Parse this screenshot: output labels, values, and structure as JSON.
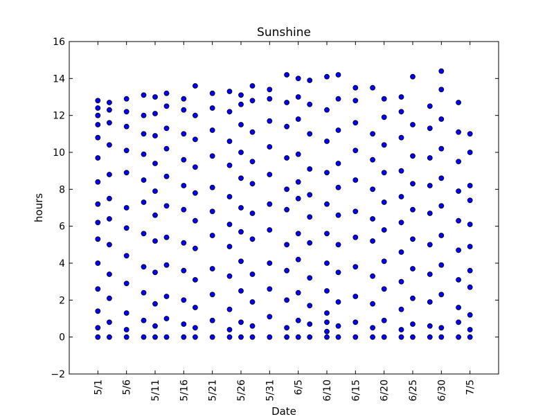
{
  "chart_data": {
    "type": "scatter",
    "title": "Sunshine",
    "xlabel": "Date",
    "ylabel": "hours",
    "xlim": [
      "2015-04-26",
      "2015-07-10"
    ],
    "ylim": [
      -2,
      16
    ],
    "x_ticks": [
      "5/1",
      "5/6",
      "5/11",
      "5/16",
      "5/21",
      "5/26",
      "5/31",
      "6/5",
      "6/10",
      "6/15",
      "6/20",
      "6/25",
      "6/30",
      "7/5"
    ],
    "y_ticks": [
      "−2",
      "0",
      "2",
      "4",
      "6",
      "8",
      "10",
      "12",
      "14",
      "16"
    ],
    "grid": false,
    "legend": "none",
    "marker": "circle",
    "marker_color": "#0000ff",
    "marker_edge_color": "#000000",
    "series": [
      {
        "x": [
          "2015-05-01",
          "2015-05-01",
          "2015-05-01",
          "2015-05-01",
          "2015-05-01",
          "2015-05-01",
          "2015-05-01",
          "2015-05-01",
          "2015-05-01",
          "2015-05-01",
          "2015-05-01",
          "2015-05-01",
          "2015-05-01",
          "2015-05-01",
          "2015-05-01",
          "2015-05-03",
          "2015-05-03",
          "2015-05-03",
          "2015-05-03",
          "2015-05-03",
          "2015-05-03",
          "2015-05-03",
          "2015-05-03",
          "2015-05-03",
          "2015-05-03",
          "2015-05-03",
          "2015-05-03",
          "2015-05-06",
          "2015-05-06",
          "2015-05-06",
          "2015-05-06",
          "2015-05-06",
          "2015-05-06",
          "2015-05-06",
          "2015-05-06",
          "2015-05-06",
          "2015-05-06",
          "2015-05-06",
          "2015-05-06",
          "2015-05-09",
          "2015-05-09",
          "2015-05-09",
          "2015-05-09",
          "2015-05-09",
          "2015-05-09",
          "2015-05-09",
          "2015-05-09",
          "2015-05-09",
          "2015-05-09",
          "2015-05-09",
          "2015-05-11",
          "2015-05-11",
          "2015-05-11",
          "2015-05-11",
          "2015-05-11",
          "2015-05-11",
          "2015-05-11",
          "2015-05-11",
          "2015-05-11",
          "2015-05-11",
          "2015-05-11",
          "2015-05-13",
          "2015-05-13",
          "2015-05-13",
          "2015-05-13",
          "2015-05-13",
          "2015-05-13",
          "2015-05-13",
          "2015-05-13",
          "2015-05-13",
          "2015-05-13",
          "2015-05-13",
          "2015-05-16",
          "2015-05-16",
          "2015-05-16",
          "2015-05-16",
          "2015-05-16",
          "2015-05-16",
          "2015-05-16",
          "2015-05-16",
          "2015-05-16",
          "2015-05-16",
          "2015-05-16",
          "2015-05-18",
          "2015-05-18",
          "2015-05-18",
          "2015-05-18",
          "2015-05-18",
          "2015-05-18",
          "2015-05-18",
          "2015-05-18",
          "2015-05-18",
          "2015-05-18",
          "2015-05-18",
          "2015-05-21",
          "2015-05-21",
          "2015-05-21",
          "2015-05-21",
          "2015-05-21",
          "2015-05-21",
          "2015-05-21",
          "2015-05-21",
          "2015-05-21",
          "2015-05-21",
          "2015-05-21",
          "2015-05-24",
          "2015-05-24",
          "2015-05-24",
          "2015-05-24",
          "2015-05-24",
          "2015-05-24",
          "2015-05-24",
          "2015-05-24",
          "2015-05-24",
          "2015-05-24",
          "2015-05-24",
          "2015-05-26",
          "2015-05-26",
          "2015-05-26",
          "2015-05-26",
          "2015-05-26",
          "2015-05-26",
          "2015-05-26",
          "2015-05-26",
          "2015-05-26",
          "2015-05-26",
          "2015-05-26",
          "2015-05-28",
          "2015-05-28",
          "2015-05-28",
          "2015-05-28",
          "2015-05-28",
          "2015-05-28",
          "2015-05-28",
          "2015-05-28",
          "2015-05-28",
          "2015-05-28",
          "2015-05-28",
          "2015-05-31",
          "2015-05-31",
          "2015-05-31",
          "2015-05-31",
          "2015-05-31",
          "2015-05-31",
          "2015-05-31",
          "2015-05-31",
          "2015-05-31",
          "2015-05-31",
          "2015-05-31",
          "2015-06-03",
          "2015-06-03",
          "2015-06-03",
          "2015-06-03",
          "2015-06-03",
          "2015-06-03",
          "2015-06-03",
          "2015-06-03",
          "2015-06-03",
          "2015-06-03",
          "2015-06-03",
          "2015-06-05",
          "2015-06-05",
          "2015-06-05",
          "2015-06-05",
          "2015-06-05",
          "2015-06-05",
          "2015-06-05",
          "2015-06-05",
          "2015-06-05",
          "2015-06-05",
          "2015-06-05",
          "2015-06-07",
          "2015-06-07",
          "2015-06-07",
          "2015-06-07",
          "2015-06-07",
          "2015-06-07",
          "2015-06-07",
          "2015-06-07",
          "2015-06-07",
          "2015-06-07",
          "2015-06-07",
          "2015-06-10",
          "2015-06-10",
          "2015-06-10",
          "2015-06-10",
          "2015-06-10",
          "2015-06-10",
          "2015-06-10",
          "2015-06-10",
          "2015-06-10",
          "2015-06-10",
          "2015-06-10",
          "2015-06-10",
          "2015-06-12",
          "2015-06-12",
          "2015-06-12",
          "2015-06-12",
          "2015-06-12",
          "2015-06-12",
          "2015-06-12",
          "2015-06-12",
          "2015-06-12",
          "2015-06-12",
          "2015-06-12",
          "2015-06-15",
          "2015-06-15",
          "2015-06-15",
          "2015-06-15",
          "2015-06-15",
          "2015-06-15",
          "2015-06-15",
          "2015-06-15",
          "2015-06-15",
          "2015-06-15",
          "2015-06-15",
          "2015-06-18",
          "2015-06-18",
          "2015-06-18",
          "2015-06-18",
          "2015-06-18",
          "2015-06-18",
          "2015-06-18",
          "2015-06-18",
          "2015-06-18",
          "2015-06-18",
          "2015-06-20",
          "2015-06-20",
          "2015-06-20",
          "2015-06-20",
          "2015-06-20",
          "2015-06-20",
          "2015-06-20",
          "2015-06-20",
          "2015-06-20",
          "2015-06-20",
          "2015-06-23",
          "2015-06-23",
          "2015-06-23",
          "2015-06-23",
          "2015-06-23",
          "2015-06-23",
          "2015-06-23",
          "2015-06-23",
          "2015-06-23",
          "2015-06-23",
          "2015-06-23",
          "2015-06-25",
          "2015-06-25",
          "2015-06-25",
          "2015-06-25",
          "2015-06-25",
          "2015-06-25",
          "2015-06-25",
          "2015-06-25",
          "2015-06-25",
          "2015-06-25",
          "2015-06-28",
          "2015-06-28",
          "2015-06-28",
          "2015-06-28",
          "2015-06-28",
          "2015-06-28",
          "2015-06-28",
          "2015-06-28",
          "2015-06-28",
          "2015-06-28",
          "2015-06-30",
          "2015-06-30",
          "2015-06-30",
          "2015-06-30",
          "2015-06-30",
          "2015-06-30",
          "2015-06-30",
          "2015-06-30",
          "2015-06-30",
          "2015-06-30",
          "2015-06-30",
          "2015-07-03",
          "2015-07-03",
          "2015-07-03",
          "2015-07-03",
          "2015-07-03",
          "2015-07-03",
          "2015-07-03",
          "2015-07-03",
          "2015-07-03",
          "2015-07-03",
          "2015-07-05",
          "2015-07-05",
          "2015-07-05",
          "2015-07-05",
          "2015-07-05",
          "2015-07-05",
          "2015-07-05",
          "2015-07-05",
          "2015-07-05",
          "2015-07-05",
          "2015-07-05"
        ],
        "y": [
          0,
          0.5,
          1.4,
          2.6,
          4.0,
          5.3,
          6.2,
          7.2,
          8.4,
          9.7,
          10.8,
          11.5,
          12.0,
          12.4,
          12.8,
          0,
          0.8,
          2.1,
          3.4,
          5.0,
          6.4,
          7.5,
          8.8,
          10.4,
          11.6,
          12.3,
          12.7,
          0,
          0.4,
          1.3,
          2.9,
          4.4,
          5.9,
          7.0,
          8.9,
          10.1,
          11.4,
          12.2,
          12.9,
          0,
          0.9,
          2.4,
          3.8,
          5.6,
          7.3,
          8.5,
          9.9,
          11.0,
          12.0,
          13.1,
          0,
          0.6,
          1.8,
          3.5,
          5.2,
          6.6,
          7.9,
          9.4,
          10.9,
          12.1,
          13.0,
          0,
          1.0,
          2.2,
          3.9,
          5.4,
          7.1,
          8.7,
          10.2,
          11.3,
          12.5,
          13.2,
          0,
          0.7,
          2.0,
          3.6,
          5.1,
          6.9,
          8.2,
          9.6,
          11.0,
          12.3,
          12.9,
          0,
          0.5,
          1.6,
          3.1,
          4.8,
          6.3,
          7.8,
          9.2,
          10.7,
          12.0,
          13.6,
          0,
          0.9,
          2.3,
          3.7,
          5.5,
          6.8,
          8.1,
          9.8,
          11.2,
          12.4,
          13.2,
          0,
          0.4,
          1.5,
          3.3,
          4.9,
          6.1,
          7.6,
          9.3,
          10.6,
          12.2,
          13.3,
          0,
          0.8,
          2.5,
          4.1,
          5.7,
          7.0,
          8.6,
          10.0,
          11.5,
          12.6,
          13.1,
          0,
          0.6,
          1.9,
          3.4,
          5.3,
          6.7,
          8.3,
          9.5,
          11.1,
          12.8,
          13.6,
          0,
          1.1,
          2.6,
          4.0,
          5.8,
          7.2,
          8.8,
          10.3,
          11.7,
          12.9,
          13.4,
          0,
          0.5,
          2.0,
          3.6,
          5.0,
          6.9,
          8.0,
          9.7,
          11.4,
          12.7,
          14.2,
          0,
          0.9,
          2.4,
          4.2,
          5.6,
          7.5,
          8.4,
          9.9,
          11.8,
          13.0,
          14.0,
          0,
          0.7,
          1.7,
          3.2,
          5.1,
          6.5,
          7.7,
          9.1,
          11.0,
          12.6,
          13.9,
          0,
          0.3,
          0.8,
          1.3,
          2.5,
          4.0,
          5.6,
          7.2,
          8.9,
          10.6,
          12.3,
          14.1,
          0,
          0.6,
          1.9,
          3.5,
          5.0,
          6.6,
          8.1,
          9.4,
          11.2,
          12.9,
          14.2,
          0,
          0.8,
          2.2,
          3.8,
          5.4,
          6.8,
          8.5,
          10.1,
          11.6,
          12.8,
          13.5,
          0,
          0.5,
          1.8,
          3.3,
          5.2,
          6.4,
          8.0,
          9.6,
          11.0,
          13.5,
          0,
          0.9,
          2.6,
          4.1,
          5.8,
          7.3,
          8.9,
          10.4,
          11.9,
          12.9,
          0,
          0.4,
          1.5,
          3.0,
          4.6,
          6.2,
          7.6,
          9.0,
          10.8,
          12.2,
          13.0,
          0,
          0.7,
          2.1,
          3.7,
          5.3,
          6.9,
          8.3,
          9.8,
          11.5,
          14.1,
          0,
          0.6,
          1.9,
          3.4,
          5.0,
          6.7,
          8.2,
          9.7,
          11.3,
          12.5,
          0,
          0.5,
          2.3,
          3.9,
          5.5,
          7.1,
          8.6,
          10.2,
          11.8,
          13.4,
          14.4,
          0,
          0.8,
          1.6,
          3.1,
          4.7,
          6.3,
          7.9,
          9.5,
          11.1,
          12.7,
          0,
          0.4,
          1.2,
          2.7,
          3.6,
          4.9,
          6.1,
          7.4,
          8.2,
          10.0,
          11.0
        ]
      }
    ]
  }
}
